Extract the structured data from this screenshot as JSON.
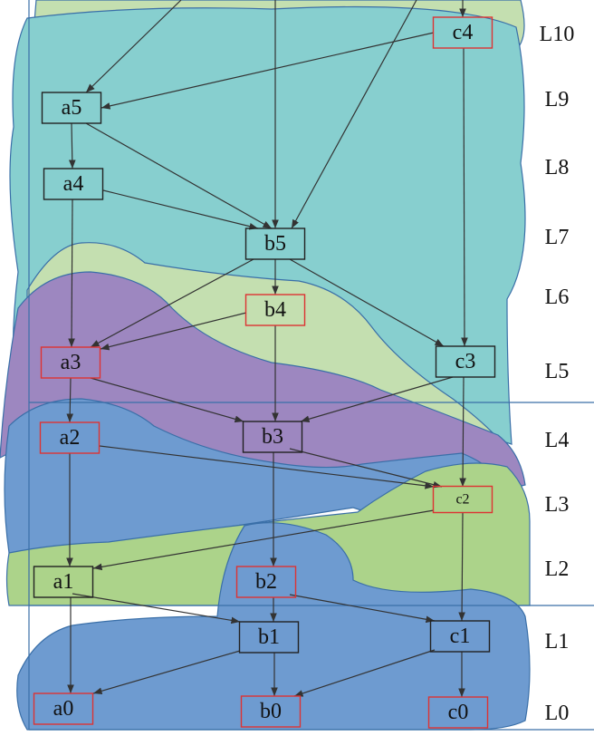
{
  "nodes": [
    {
      "label": "c4"
    },
    {
      "label": "a5"
    },
    {
      "label": "a4"
    },
    {
      "label": "b5"
    },
    {
      "label": "b4"
    },
    {
      "label": "a3"
    },
    {
      "label": "c3"
    },
    {
      "label": "a2"
    },
    {
      "label": "b3"
    },
    {
      "label": "c2"
    },
    {
      "label": "a1"
    },
    {
      "label": "b2"
    },
    {
      "label": "b1"
    },
    {
      "label": "c1"
    },
    {
      "label": "a0"
    },
    {
      "label": "b0"
    },
    {
      "label": "c0"
    }
  ],
  "levels": [
    "L10",
    "L9",
    "L8",
    "L7",
    "L6",
    "L5",
    "L4",
    "L3",
    "L2",
    "L1",
    "L0"
  ]
}
